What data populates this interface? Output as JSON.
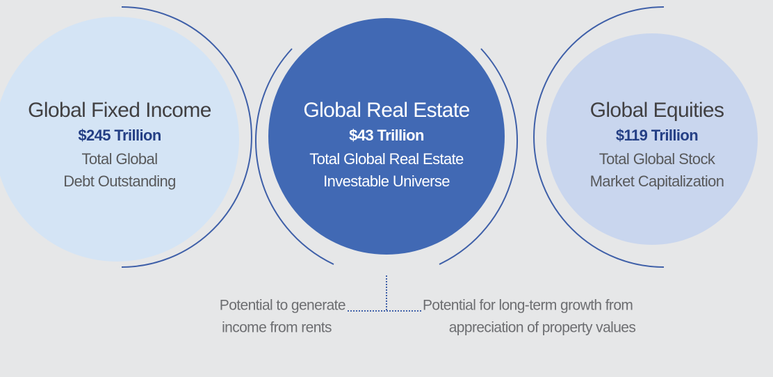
{
  "circles": [
    {
      "title": "Global Fixed Income",
      "amount": "$245 Trillion",
      "description": [
        "Total Global",
        "Debt Outstanding"
      ]
    },
    {
      "title": "Global Real Estate",
      "amount": "$43 Trillion",
      "description": [
        "Total Global Real Estate",
        "Investable Universe"
      ]
    },
    {
      "title": "Global Equities",
      "amount": "$119 Trillion",
      "description": [
        "Total Global Stock",
        "Market Capitalization"
      ]
    }
  ],
  "notes": [
    {
      "lines": [
        "Potential to generate",
        "income from rents"
      ]
    },
    {
      "lines": [
        "Potential for long-term growth from",
        "appreciation of property values"
      ]
    }
  ]
}
